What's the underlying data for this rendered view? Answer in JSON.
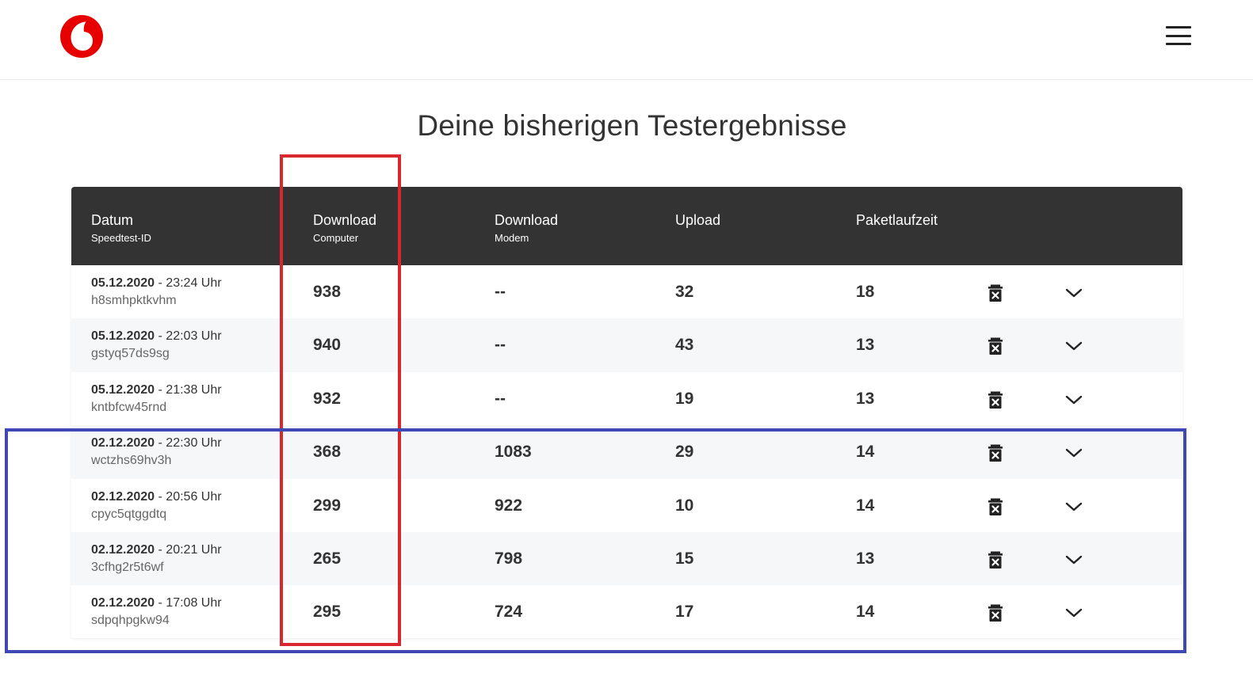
{
  "page": {
    "title": "Deine bisherigen Testergebnisse"
  },
  "header": {
    "logo_icon": "vodafone-logo-icon",
    "menu_icon": "hamburger-menu-icon"
  },
  "colors": {
    "brand": "#e60000",
    "table_header": "#333333",
    "row_alt": "#f6f7f9",
    "annotation_red": "#d9262f",
    "annotation_blue": "#3f48b5"
  },
  "table": {
    "columns": [
      {
        "label": "Datum",
        "sub": "Speedtest-ID"
      },
      {
        "label": "Download",
        "sub": "Computer"
      },
      {
        "label": "Download",
        "sub": "Modem"
      },
      {
        "label": "Upload",
        "sub": ""
      },
      {
        "label": "Paketlaufzeit",
        "sub": ""
      }
    ],
    "rows": [
      {
        "date": "05.12.2020",
        "time": " - 23:24 Uhr",
        "id": "h8smhpktkvhm",
        "download_computer": "938",
        "download_modem": "--",
        "upload": "32",
        "latency": "18"
      },
      {
        "date": "05.12.2020",
        "time": " - 22:03 Uhr",
        "id": "gstyq57ds9sg",
        "download_computer": "940",
        "download_modem": "--",
        "upload": "43",
        "latency": "13"
      },
      {
        "date": "05.12.2020",
        "time": " - 21:38 Uhr",
        "id": "kntbfcw45rnd",
        "download_computer": "932",
        "download_modem": "--",
        "upload": "19",
        "latency": "13"
      },
      {
        "date": "02.12.2020",
        "time": " - 22:30 Uhr",
        "id": "wctzhs69hv3h",
        "download_computer": "368",
        "download_modem": "1083",
        "upload": "29",
        "latency": "14"
      },
      {
        "date": "02.12.2020",
        "time": " - 20:56 Uhr",
        "id": "cpyc5qtggdtq",
        "download_computer": "299",
        "download_modem": "922",
        "upload": "10",
        "latency": "14"
      },
      {
        "date": "02.12.2020",
        "time": " - 20:21 Uhr",
        "id": "3cfhg2r5t6wf",
        "download_computer": "265",
        "download_modem": "798",
        "upload": "15",
        "latency": "13"
      },
      {
        "date": "02.12.2020",
        "time": " - 17:08 Uhr",
        "id": "sdpqhpgkw94",
        "download_computer": "295",
        "download_modem": "724",
        "upload": "17",
        "latency": "14"
      }
    ],
    "row_icons": {
      "delete": "trash-icon",
      "expand": "chevron-down-icon"
    }
  }
}
